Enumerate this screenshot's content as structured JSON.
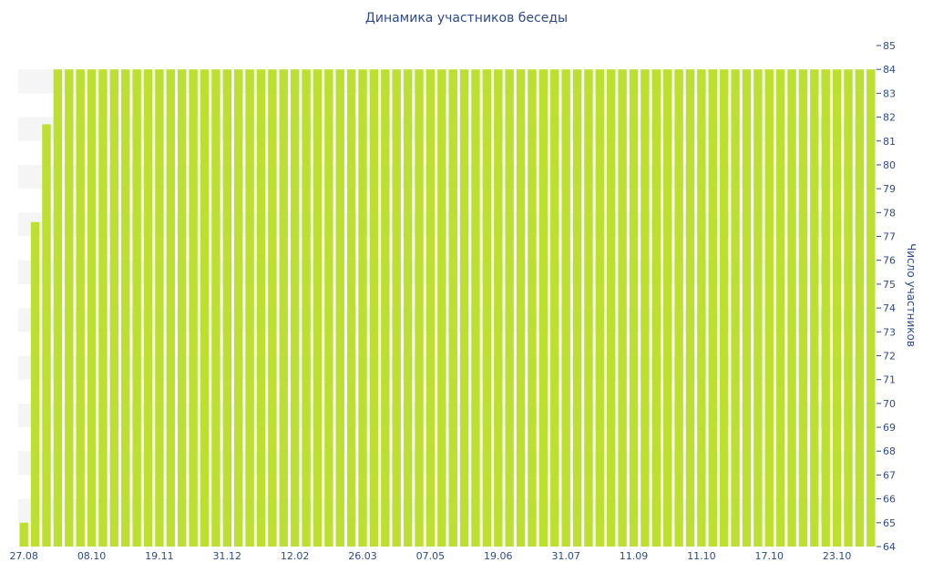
{
  "chart_data": {
    "type": "bar",
    "title": "Динамика участников беседы",
    "ylabel": "Число участников",
    "xlabel": "",
    "ylim": [
      64,
      85
    ],
    "yticks": [
      64,
      65,
      66,
      67,
      68,
      69,
      70,
      71,
      72,
      73,
      74,
      75,
      76,
      77,
      78,
      79,
      80,
      81,
      82,
      83,
      84,
      85
    ],
    "x_tick_labels": [
      "27.08",
      "08.10",
      "19.11",
      "31.12",
      "12.02",
      "26.03",
      "07.05",
      "19.06",
      "31.07",
      "11.09",
      "11.10",
      "17.10",
      "23.10"
    ],
    "x_tick_bar_index": [
      0,
      6,
      12,
      18,
      24,
      30,
      36,
      42,
      48,
      54,
      60,
      66,
      72
    ],
    "values": [
      65.0,
      77.6,
      81.7,
      84,
      84,
      84,
      84,
      84,
      84,
      84,
      84,
      84,
      84,
      84,
      84,
      84,
      84,
      84,
      84,
      84,
      84,
      84,
      84,
      84,
      84,
      84,
      84,
      84,
      84,
      84,
      84,
      84,
      84,
      84,
      84,
      84,
      84,
      84,
      84,
      84,
      84,
      84,
      84,
      84,
      84,
      84,
      84,
      84,
      84,
      84,
      84,
      84,
      84,
      84,
      84,
      84,
      84,
      84,
      84,
      84,
      84,
      84,
      84,
      84,
      84,
      84,
      84,
      84,
      84,
      84,
      84,
      84,
      84,
      84,
      84,
      84
    ],
    "bar_color": "#bde030",
    "text_color": "#2f4a8a",
    "band_color": "#f5f5f5",
    "grid": false,
    "legend": "none",
    "y_axis_side": "right"
  }
}
